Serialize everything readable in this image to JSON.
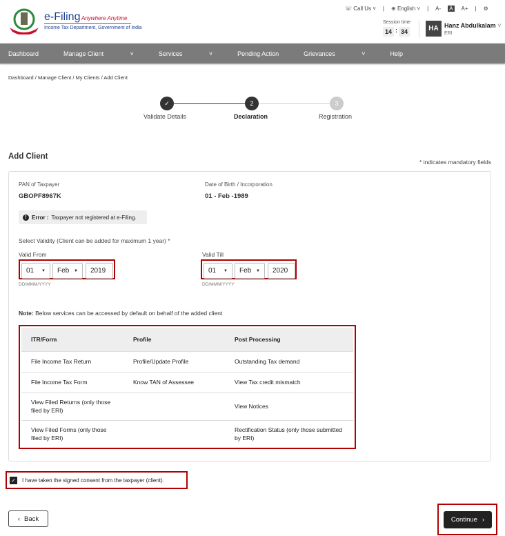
{
  "header": {
    "brand": "e-Filing",
    "tagline": "Anywhere Anytime",
    "dept": "Income Tax Department, Government of India",
    "call_us": "Call Us",
    "language": "English",
    "font_small": "A-",
    "font_normal": "A",
    "font_large": "A+",
    "session_label": "Session time",
    "session_min": "14",
    "session_sec": "34",
    "user_initials": "HA",
    "user_name": "Hanz Abdulkalam",
    "user_role": "ERI"
  },
  "nav": [
    "Dashboard",
    "Manage Client",
    "Services",
    "Pending Action",
    "Grievances",
    "Help"
  ],
  "breadcrumb": "Dashboard / Manage Client / My Clients / Add Client",
  "steps": [
    {
      "num": "✓",
      "label": "Validate Details"
    },
    {
      "num": "2",
      "label": "Declaration"
    },
    {
      "num": "3",
      "label": "Registration"
    }
  ],
  "page_title": "Add Client",
  "mandatory_note": "* indicates mandatory fields",
  "pan_label": "PAN of Taxpayer",
  "pan": "GBOPF8967K",
  "dob_label": "Date of Birth / Incorporation",
  "dob": "01 - Feb -1989",
  "error_label": "Error :",
  "error_text": "Taxpayer not registered at e-Filing.",
  "validity_label": "Select Validity (Client can be added for maximum 1 year) *",
  "valid_from": {
    "label": "Valid From",
    "day": "01",
    "month": "Feb",
    "year": "2019",
    "hint": "DD/MMM/YYYY"
  },
  "valid_till": {
    "label": "Valid Till",
    "day": "01",
    "month": "Feb",
    "year": "2020",
    "hint": "DD/MMM/YYYY"
  },
  "note_label": "Note:",
  "note_text": "Below services can be accessed by default on behalf of the added client",
  "table": {
    "headers": [
      "ITR/Form",
      "Profile",
      "Post Processing"
    ],
    "rows": [
      [
        "File Income Tax Return",
        "Profile/Update Profile",
        "Outstanding Tax demand"
      ],
      [
        "File Income Tax Form",
        "Know TAN of Assessee",
        "View Tax credit mismatch"
      ],
      [
        "View Filed Returns (only those filed by ERI)",
        "",
        "View Notices"
      ],
      [
        "View Filed Forms (only those filed by ERI)",
        "",
        "Rectification Status (only those submitted by ERI)"
      ]
    ]
  },
  "consent": "I have taken the signed consent from the taxpayer (client).",
  "back": "Back",
  "continue": "Continue"
}
